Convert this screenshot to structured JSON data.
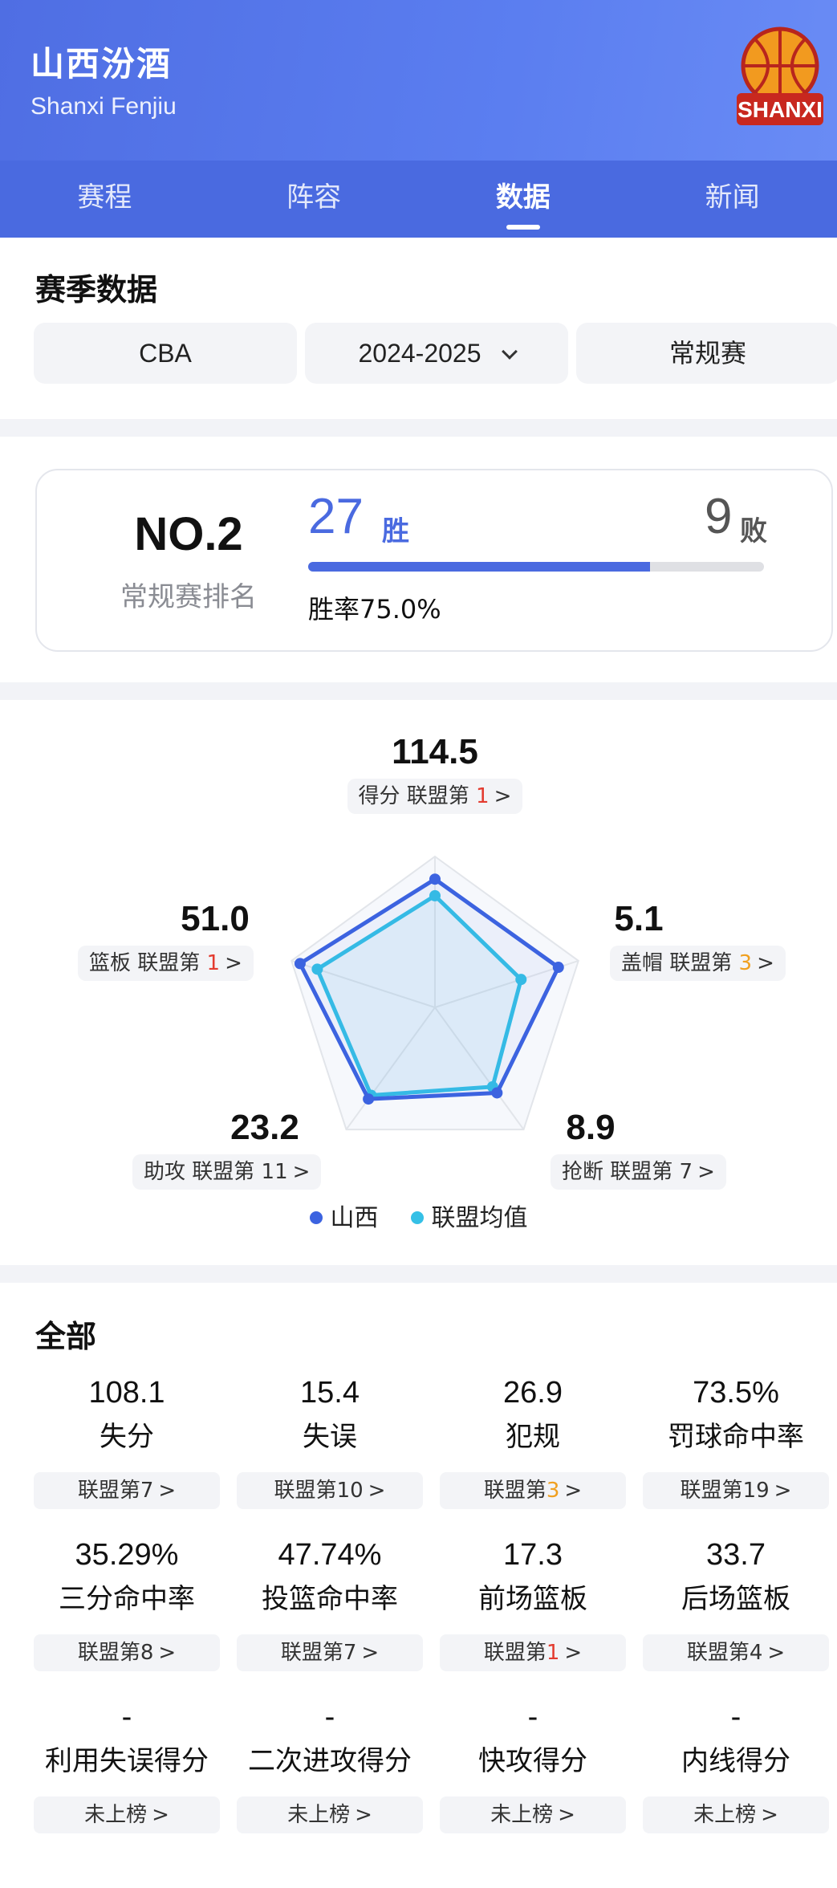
{
  "header": {
    "team_name": "山西汾酒",
    "team_en": "Shanxi Fenjiu",
    "logo_text": "SHANXI"
  },
  "tabs": [
    {
      "label": "赛程",
      "active": false
    },
    {
      "label": "阵容",
      "active": false
    },
    {
      "label": "数据",
      "active": true
    },
    {
      "label": "新闻",
      "active": false
    }
  ],
  "season": {
    "title": "赛季数据",
    "league": "CBA",
    "year": "2024-2025",
    "type": "常规赛"
  },
  "rank": {
    "no": "NO.2",
    "label": "常规赛排名",
    "wins": "27",
    "wins_label": "胜",
    "losses": "9",
    "losses_label": "败",
    "win_fraction": 0.75,
    "win_rate": "胜率75.0%"
  },
  "radar": {
    "stats": [
      {
        "key": "points",
        "value": "114.5",
        "label": "得分 联盟第",
        "rank": "1",
        "rank_color": "#e33b2f",
        "team": 0.85,
        "league": 0.74
      },
      {
        "key": "blocks",
        "value": "5.1",
        "label": "盖帽 联盟第",
        "rank": "3",
        "rank_color": "#f0a020",
        "team": 0.86,
        "league": 0.6
      },
      {
        "key": "steals",
        "value": "8.9",
        "label": "抢断 联盟第",
        "rank": "7",
        "rank_color": "#333333",
        "team": 0.7,
        "league": 0.65
      },
      {
        "key": "assists",
        "value": "23.2",
        "label": "助攻 联盟第",
        "rank": "11",
        "rank_color": "#333333",
        "team": 0.75,
        "league": 0.72
      },
      {
        "key": "rebounds",
        "value": "51.0",
        "label": "篮板 联盟第",
        "rank": "1",
        "rank_color": "#e33b2f",
        "team": 0.94,
        "league": 0.82
      }
    ],
    "legend": [
      {
        "label": "山西",
        "color": "#3c63e0"
      },
      {
        "label": "联盟均值",
        "color": "#35c0e6"
      }
    ]
  },
  "all": {
    "title": "全部",
    "items": [
      {
        "value": "108.1",
        "name": "失分",
        "rank_prefix": "联盟第",
        "rank": "7",
        "rank_style": ""
      },
      {
        "value": "15.4",
        "name": "失误",
        "rank_prefix": "联盟第",
        "rank": "10",
        "rank_style": ""
      },
      {
        "value": "26.9",
        "name": "犯规",
        "rank_prefix": "联盟第",
        "rank": "3",
        "rank_style": "orange"
      },
      {
        "value": "73.5%",
        "name": "罚球命中率",
        "rank_prefix": "联盟第",
        "rank": "19",
        "rank_style": ""
      },
      {
        "value": "35.29%",
        "name": "三分命中率",
        "rank_prefix": "联盟第",
        "rank": "8",
        "rank_style": ""
      },
      {
        "value": "47.74%",
        "name": "投篮命中率",
        "rank_prefix": "联盟第",
        "rank": "7",
        "rank_style": ""
      },
      {
        "value": "17.3",
        "name": "前场篮板",
        "rank_prefix": "联盟第",
        "rank": "1",
        "rank_style": "red"
      },
      {
        "value": "33.7",
        "name": "后场篮板",
        "rank_prefix": "联盟第",
        "rank": "4",
        "rank_style": ""
      },
      {
        "value": "-",
        "name": "利用失误得分",
        "rank_prefix": "未上榜",
        "rank": "",
        "rank_style": ""
      },
      {
        "value": "-",
        "name": "二次进攻得分",
        "rank_prefix": "未上榜",
        "rank": "",
        "rank_style": ""
      },
      {
        "value": "-",
        "name": "快攻得分",
        "rank_prefix": "未上榜",
        "rank": "",
        "rank_style": ""
      },
      {
        "value": "-",
        "name": "内线得分",
        "rank_prefix": "未上榜",
        "rank": "",
        "rank_style": ""
      }
    ]
  }
}
